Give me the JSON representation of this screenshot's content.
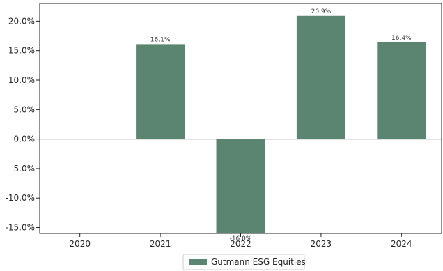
{
  "chart_data": {
    "type": "bar",
    "title": "",
    "xlabel": "",
    "ylabel": "",
    "categories": [
      "2020",
      "2021",
      "2022",
      "2023",
      "2024"
    ],
    "series": [
      {
        "name": "Gutmann ESG Equities",
        "values": [
          null,
          16.1,
          -16.0,
          20.9,
          16.4
        ],
        "value_labels": [
          "",
          "16.1%",
          "-16.0%",
          "20.9%",
          "16.4%"
        ]
      }
    ],
    "y_ticks": [
      "-15.0%",
      "-10.0%",
      "-5.0%",
      "0.0%",
      "5.0%",
      "10.0%",
      "15.0%",
      "20.0%"
    ],
    "y_tick_values": [
      -15,
      -10,
      -5,
      0,
      5,
      10,
      15,
      20
    ],
    "ylim": [
      -16,
      23
    ],
    "grid": false,
    "zero_line": true,
    "legend_position": "bottom-center",
    "colors": {
      "bar": "#5b8570",
      "axis": "#222222"
    }
  }
}
